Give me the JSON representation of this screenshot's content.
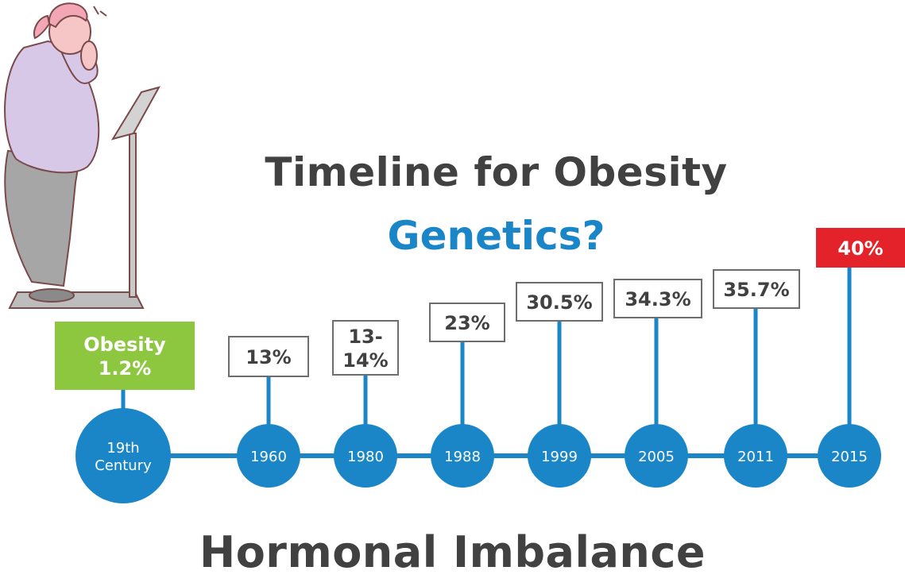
{
  "title": {
    "line1": "Timeline for Obesity",
    "line2": "Genetics?"
  },
  "footer": "Hormonal Imbalance",
  "colors": {
    "timeline_blue": "#1a86c7",
    "text_dark": "#414141",
    "highlight_green": "#8dc63f",
    "highlight_red": "#e32329",
    "box_border": "#6d6d6d"
  },
  "timeline": [
    {
      "year_lines": [
        "19th",
        "Century"
      ],
      "value_lines": [
        "Obesity",
        "1.2%"
      ],
      "style": "green"
    },
    {
      "year_lines": [
        "1960"
      ],
      "value_lines": [
        "13%"
      ],
      "style": "outline"
    },
    {
      "year_lines": [
        "1980"
      ],
      "value_lines": [
        "13-",
        "14%"
      ],
      "style": "outline"
    },
    {
      "year_lines": [
        "1988"
      ],
      "value_lines": [
        "23%"
      ],
      "style": "outline"
    },
    {
      "year_lines": [
        "1999"
      ],
      "value_lines": [
        "30.5%"
      ],
      "style": "outline"
    },
    {
      "year_lines": [
        "2005"
      ],
      "value_lines": [
        "34.3%"
      ],
      "style": "outline"
    },
    {
      "year_lines": [
        "2011"
      ],
      "value_lines": [
        "35.7%"
      ],
      "style": "outline"
    },
    {
      "year_lines": [
        "2015"
      ],
      "value_lines": [
        "40%"
      ],
      "style": "red"
    }
  ],
  "illustration": "woman-on-scale-illustration"
}
